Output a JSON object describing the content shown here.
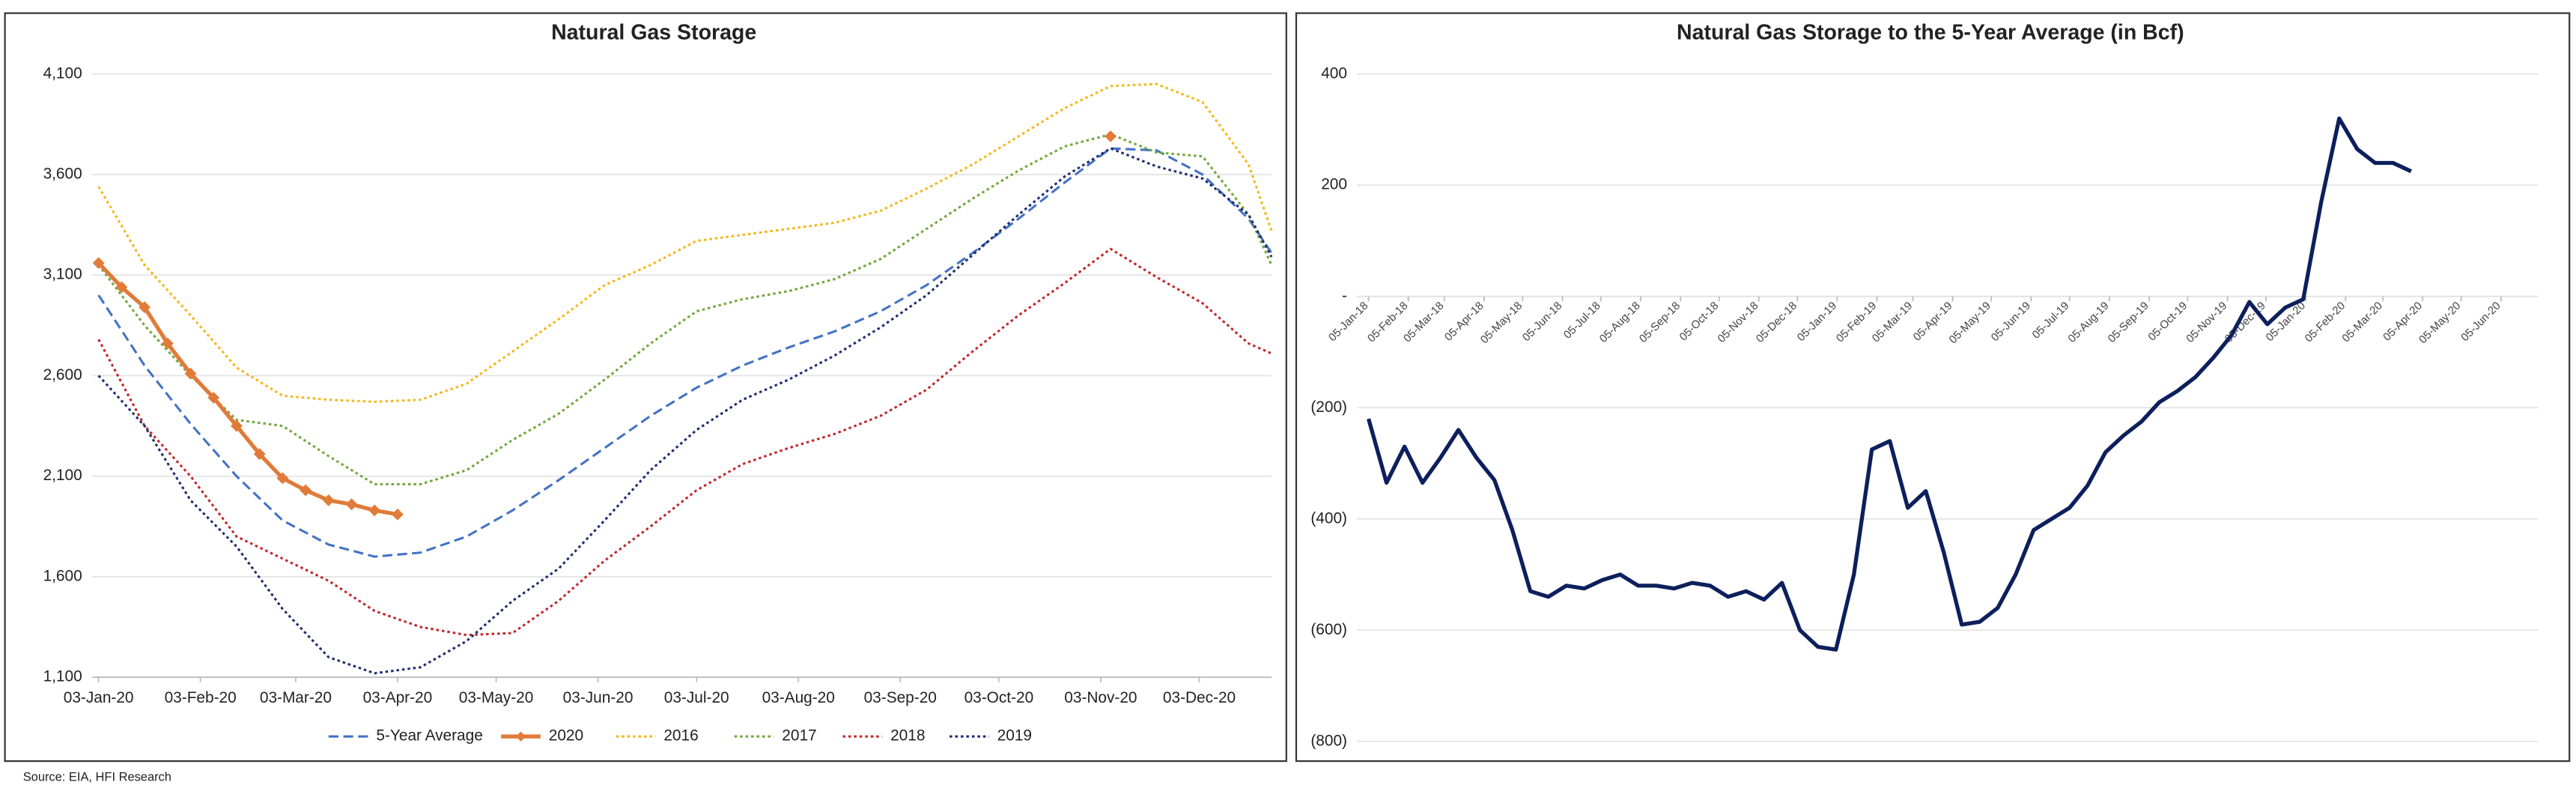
{
  "chart_data": [
    {
      "type": "line",
      "title": "Natural Gas Storage",
      "x": [
        "2020-01-03",
        "2020-01-17",
        "2020-01-31",
        "2020-02-14",
        "2020-02-28",
        "2020-03-13",
        "2020-03-27",
        "2020-04-10",
        "2020-04-24",
        "2020-05-08",
        "2020-05-22",
        "2020-06-05",
        "2020-06-19",
        "2020-07-03",
        "2020-07-17",
        "2020-07-31",
        "2020-08-14",
        "2020-08-28",
        "2020-09-11",
        "2020-09-25",
        "2020-10-09",
        "2020-10-23",
        "2020-11-06",
        "2020-11-20",
        "2020-12-04",
        "2020-12-18",
        "2020-12-25"
      ],
      "series": [
        {
          "name": "5-Year Average",
          "color": "#4472c4",
          "style": "dashed",
          "values": [
            3000,
            2650,
            2360,
            2100,
            1880,
            1760,
            1700,
            1720,
            1800,
            1930,
            2080,
            2240,
            2400,
            2540,
            2650,
            2740,
            2820,
            2920,
            3050,
            3210,
            3380,
            3560,
            3730,
            3720,
            3600,
            3380,
            3210
          ]
        },
        {
          "name": "2020",
          "color": "#e07b39",
          "style": "solid",
          "markers": true,
          "x": [
            "2020-01-03",
            "2020-01-10",
            "2020-01-17",
            "2020-01-24",
            "2020-01-31",
            "2020-02-07",
            "2020-02-14",
            "2020-02-21",
            "2020-02-28",
            "2020-03-06",
            "2020-03-13",
            "2020-03-20",
            "2020-03-27",
            "2020-04-03",
            "2020-11-06"
          ],
          "values": [
            3160,
            3040,
            2940,
            2760,
            2610,
            2490,
            2350,
            2210,
            2090,
            2030,
            1980,
            1960,
            1930,
            1910,
            3790
          ]
        },
        {
          "name": "2016",
          "color": "#f2b81c",
          "style": "dotted",
          "values": [
            3540,
            3150,
            2900,
            2640,
            2500,
            2480,
            2470,
            2480,
            2560,
            2720,
            2880,
            3050,
            3150,
            3270,
            3300,
            3330,
            3360,
            3420,
            3530,
            3650,
            3790,
            3930,
            4040,
            4050,
            3960,
            3650,
            3320
          ]
        },
        {
          "name": "2017",
          "color": "#70a83b",
          "style": "dotted",
          "values": [
            3150,
            2850,
            2600,
            2380,
            2350,
            2200,
            2060,
            2060,
            2130,
            2280,
            2410,
            2580,
            2760,
            2920,
            2980,
            3020,
            3080,
            3180,
            3330,
            3480,
            3620,
            3740,
            3800,
            3710,
            3690,
            3400,
            3150
          ]
        },
        {
          "name": "2018",
          "color": "#c0282b",
          "style": "dotted",
          "values": [
            2780,
            2350,
            2100,
            1800,
            1690,
            1580,
            1430,
            1350,
            1310,
            1320,
            1480,
            1680,
            1850,
            2030,
            2160,
            2240,
            2310,
            2400,
            2530,
            2720,
            2900,
            3060,
            3230,
            3090,
            2960,
            2760,
            2710
          ]
        },
        {
          "name": "2019",
          "color": "#1f2d6e",
          "style": "dotted",
          "values": [
            2600,
            2350,
            1980,
            1750,
            1440,
            1200,
            1120,
            1150,
            1280,
            1480,
            1640,
            1880,
            2130,
            2330,
            2480,
            2580,
            2700,
            2840,
            3000,
            3200,
            3400,
            3590,
            3730,
            3640,
            3580,
            3400,
            3190
          ]
        }
      ],
      "xlim": [
        "2020-01-01",
        "2020-12-25"
      ],
      "xticks": [
        {
          "value": "2020-01-03",
          "label": "03-Jan-20"
        },
        {
          "value": "2020-02-03",
          "label": "03-Feb-20"
        },
        {
          "value": "2020-03-03",
          "label": "03-Mar-20"
        },
        {
          "value": "2020-04-03",
          "label": "03-Apr-20"
        },
        {
          "value": "2020-05-03",
          "label": "03-May-20"
        },
        {
          "value": "2020-06-03",
          "label": "03-Jun-20"
        },
        {
          "value": "2020-07-03",
          "label": "03-Jul-20"
        },
        {
          "value": "2020-08-03",
          "label": "03-Aug-20"
        },
        {
          "value": "2020-09-03",
          "label": "03-Sep-20"
        },
        {
          "value": "2020-10-03",
          "label": "03-Oct-20"
        },
        {
          "value": "2020-11-03",
          "label": "03-Nov-20"
        },
        {
          "value": "2020-12-03",
          "label": "03-Dec-20"
        }
      ],
      "ylim": [
        1100,
        4100
      ],
      "yticks": [
        {
          "value": 4100,
          "label": "4,100"
        },
        {
          "value": 3600,
          "label": "3,600"
        },
        {
          "value": 3100,
          "label": "3,100"
        },
        {
          "value": 2600,
          "label": "2,600"
        },
        {
          "value": 2100,
          "label": "2,100"
        },
        {
          "value": 1600,
          "label": "1,600"
        },
        {
          "value": 1100,
          "label": "1,100"
        }
      ],
      "grid": true,
      "legend": "bottom"
    },
    {
      "type": "line",
      "title": "Natural Gas Storage to the 5-Year Average (in Bcf)",
      "x": [
        "2018-01-05",
        "2018-01-19",
        "2018-02-02",
        "2018-02-16",
        "2018-03-02",
        "2018-03-16",
        "2018-03-30",
        "2018-04-13",
        "2018-04-27",
        "2018-05-11",
        "2018-05-25",
        "2018-06-08",
        "2018-06-22",
        "2018-07-06",
        "2018-07-20",
        "2018-08-03",
        "2018-08-17",
        "2018-08-31",
        "2018-09-14",
        "2018-09-28",
        "2018-10-12",
        "2018-10-26",
        "2018-11-09",
        "2018-11-23",
        "2018-12-07",
        "2018-12-21",
        "2019-01-04",
        "2019-01-18",
        "2019-02-01",
        "2019-02-15",
        "2019-03-01",
        "2019-03-15",
        "2019-03-29",
        "2019-04-12",
        "2019-04-26",
        "2019-05-10",
        "2019-05-24",
        "2019-06-07",
        "2019-06-21",
        "2019-07-05",
        "2019-07-19",
        "2019-08-02",
        "2019-08-16",
        "2019-08-30",
        "2019-09-13",
        "2019-09-27",
        "2019-10-11",
        "2019-10-25",
        "2019-11-08",
        "2019-11-22",
        "2019-12-06",
        "2019-12-20",
        "2020-01-03",
        "2020-01-17",
        "2020-01-31",
        "2020-02-14",
        "2020-02-28",
        "2020-03-13",
        "2020-03-27"
      ],
      "series": [
        {
          "color": "#0d1f5c",
          "style": "solid",
          "values": [
            -220,
            -335,
            -270,
            -335,
            -290,
            -240,
            -290,
            -330,
            -420,
            -530,
            -540,
            -520,
            -525,
            -510,
            -500,
            -520,
            -520,
            -525,
            -515,
            -520,
            -540,
            -530,
            -545,
            -515,
            -600,
            -630,
            -635,
            -500,
            -275,
            -260,
            -380,
            -350,
            -460,
            -590,
            -585,
            -560,
            -500,
            -420,
            -400,
            -380,
            -340,
            -280,
            -250,
            -225,
            -190,
            -170,
            -145,
            -110,
            -70,
            -10,
            -50,
            -20,
            -5,
            170,
            320,
            265,
            240,
            240,
            225
          ]
        }
      ],
      "xlim": [
        "2017-12-27",
        "2020-07-04"
      ],
      "xticks": [
        {
          "value": "2018-01-05",
          "label": "05-Jan-18"
        },
        {
          "value": "2018-02-05",
          "label": "05-Feb-18"
        },
        {
          "value": "2018-03-05",
          "label": "05-Mar-18"
        },
        {
          "value": "2018-04-05",
          "label": "05-Apr-18"
        },
        {
          "value": "2018-05-05",
          "label": "05-May-18"
        },
        {
          "value": "2018-06-05",
          "label": "05-Jun-18"
        },
        {
          "value": "2018-07-05",
          "label": "05-Jul-18"
        },
        {
          "value": "2018-08-05",
          "label": "05-Aug-18"
        },
        {
          "value": "2018-09-05",
          "label": "05-Sep-18"
        },
        {
          "value": "2018-10-05",
          "label": "05-Oct-18"
        },
        {
          "value": "2018-11-05",
          "label": "05-Nov-18"
        },
        {
          "value": "2018-12-05",
          "label": "05-Dec-18"
        },
        {
          "value": "2019-01-05",
          "label": "05-Jan-19"
        },
        {
          "value": "2019-02-05",
          "label": "05-Feb-19"
        },
        {
          "value": "2019-03-05",
          "label": "05-Mar-19"
        },
        {
          "value": "2019-04-05",
          "label": "05-Apr-19"
        },
        {
          "value": "2019-05-05",
          "label": "05-May-19"
        },
        {
          "value": "2019-06-05",
          "label": "05-Jun-19"
        },
        {
          "value": "2019-07-05",
          "label": "05-Jul-19"
        },
        {
          "value": "2019-08-05",
          "label": "05-Aug-19"
        },
        {
          "value": "2019-09-05",
          "label": "05-Sep-19"
        },
        {
          "value": "2019-10-05",
          "label": "05-Oct-19"
        },
        {
          "value": "2019-11-05",
          "label": "05-Nov-19"
        },
        {
          "value": "2019-12-05",
          "label": "05-Dec-19"
        },
        {
          "value": "2020-01-05",
          "label": "05-Jan-20"
        },
        {
          "value": "2020-02-05",
          "label": "05-Feb-20"
        },
        {
          "value": "2020-03-05",
          "label": "05-Mar-20"
        },
        {
          "value": "2020-04-05",
          "label": "05-Apr-20"
        },
        {
          "value": "2020-05-05",
          "label": "05-May-20"
        },
        {
          "value": "2020-06-05",
          "label": "05-Jun-20"
        }
      ],
      "ylim": [
        -800,
        400
      ],
      "yticks": [
        400,
        200,
        {
          "value": 0,
          "label": "-"
        },
        {
          "value": -200,
          "label": "(200)"
        },
        {
          "value": -400,
          "label": "(400)"
        },
        {
          "value": -600,
          "label": "(600)"
        },
        {
          "value": -800,
          "label": "(800)"
        }
      ],
      "grid": true
    }
  ],
  "source": "Source: EIA, HFI Research"
}
